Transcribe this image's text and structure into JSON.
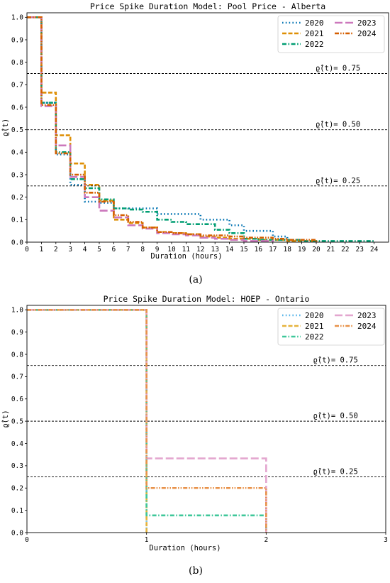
{
  "chart_data": [
    {
      "type": "line",
      "step": true,
      "panel_label": "(a)",
      "title": "Price Spike Duration Model: Pool Price - Alberta",
      "xlabel": "Duration (hours)",
      "ylabel": "ϱ̂(t)",
      "xlim": [
        0,
        25
      ],
      "ylim": [
        0,
        1.02
      ],
      "xticks": [
        0,
        1,
        2,
        3,
        4,
        5,
        6,
        7,
        8,
        9,
        10,
        11,
        12,
        13,
        14,
        15,
        16,
        17,
        18,
        19,
        20,
        21,
        22,
        23,
        24
      ],
      "yticks": [
        0.0,
        0.1,
        0.2,
        0.3,
        0.4,
        0.5,
        0.6,
        0.7,
        0.8,
        0.9,
        1.0
      ],
      "legend": {
        "position": "top-right",
        "columns": 2,
        "order": [
          "2020",
          "2021",
          "2022",
          "2023",
          "2024"
        ]
      },
      "hlines": [
        {
          "y": 0.75,
          "label": "ϱ̂(t)= 0.75",
          "label_x": 21.5
        },
        {
          "y": 0.5,
          "label": "ϱ̂(t)= 0.50",
          "label_x": 21.5
        },
        {
          "y": 0.25,
          "label": "ϱ̂(t)= 0.25",
          "label_x": 21.5
        }
      ],
      "series": [
        {
          "name": "2020",
          "color": "#0173b2",
          "dash": "dot",
          "x": [
            0,
            1,
            2,
            3,
            4,
            5,
            6,
            7,
            8,
            9,
            10,
            11,
            12,
            13,
            14,
            15,
            16,
            17,
            18
          ],
          "y": [
            1.0,
            0.62,
            0.39,
            0.255,
            0.18,
            0.175,
            0.15,
            0.15,
            0.15,
            0.125,
            0.125,
            0.125,
            0.1,
            0.1,
            0.075,
            0.05,
            0.05,
            0.025,
            0.0
          ]
        },
        {
          "name": "2021",
          "color": "#de8f05",
          "dash": "dash",
          "x": [
            0,
            1,
            2,
            3,
            4,
            5,
            6,
            7,
            8,
            9,
            10,
            11,
            12,
            13,
            14,
            15,
            16,
            17,
            18,
            19,
            20
          ],
          "y": [
            1.0,
            0.665,
            0.475,
            0.35,
            0.255,
            0.185,
            0.1,
            0.085,
            0.065,
            0.045,
            0.04,
            0.035,
            0.025,
            0.02,
            0.015,
            0.015,
            0.01,
            0.01,
            0.005,
            0.005,
            0.0
          ]
        },
        {
          "name": "2022",
          "color": "#029e73",
          "dash": "dashdot",
          "x": [
            0,
            1,
            2,
            3,
            4,
            5,
            6,
            7,
            8,
            9,
            10,
            11,
            12,
            13,
            14,
            15,
            16,
            17,
            18,
            19,
            20,
            21,
            22,
            23,
            24
          ],
          "y": [
            1.0,
            0.62,
            0.4,
            0.28,
            0.24,
            0.19,
            0.15,
            0.145,
            0.135,
            0.1,
            0.09,
            0.08,
            0.08,
            0.055,
            0.04,
            0.015,
            0.01,
            0.01,
            0.01,
            0.005,
            0.005,
            0.005,
            0.005,
            0.005,
            0.0
          ]
        },
        {
          "name": "2023",
          "color": "#cc78bc",
          "dash": "longdash",
          "x": [
            0,
            1,
            2,
            3,
            4,
            5,
            6,
            7,
            8,
            9,
            10,
            11,
            12,
            13,
            14,
            15,
            16,
            17
          ],
          "y": [
            1.0,
            0.605,
            0.43,
            0.29,
            0.2,
            0.14,
            0.11,
            0.075,
            0.06,
            0.04,
            0.035,
            0.03,
            0.02,
            0.015,
            0.01,
            0.005,
            0.005,
            0.0
          ]
        },
        {
          "name": "2024",
          "color": "#d55e00",
          "dash": "dashdotdot",
          "x": [
            0,
            1,
            2,
            3,
            4,
            5,
            6,
            7,
            8,
            9,
            10,
            11,
            12,
            13,
            14,
            15,
            16,
            17,
            18,
            19,
            20
          ],
          "y": [
            1.0,
            0.61,
            0.395,
            0.3,
            0.22,
            0.18,
            0.12,
            0.09,
            0.065,
            0.045,
            0.04,
            0.035,
            0.03,
            0.03,
            0.025,
            0.02,
            0.02,
            0.015,
            0.01,
            0.01,
            0.0
          ]
        }
      ]
    },
    {
      "type": "line",
      "step": true,
      "panel_label": "(b)",
      "title": "Price Spike Duration Model: HOEP - Ontario",
      "xlabel": "Duration (hours)",
      "ylabel": "ϱ̂(t)",
      "xlim": [
        0,
        3
      ],
      "ylim": [
        0,
        1.02
      ],
      "xticks": [
        0,
        1,
        2,
        3
      ],
      "yticks": [
        0.0,
        0.1,
        0.2,
        0.3,
        0.4,
        0.5,
        0.6,
        0.7,
        0.8,
        0.9,
        1.0
      ],
      "legend": {
        "position": "top-right",
        "columns": 2,
        "order": [
          "2020",
          "2021",
          "2022",
          "2023",
          "2024"
        ]
      },
      "hlines": [
        {
          "y": 0.75,
          "label": "ϱ̂(t)= 0.75",
          "label_x": 2.58
        },
        {
          "y": 0.5,
          "label": "ϱ̂(t)= 0.50",
          "label_x": 2.58
        },
        {
          "y": 0.25,
          "label": "ϱ̂(t)= 0.25",
          "label_x": 2.58
        }
      ],
      "series": [
        {
          "name": "2020",
          "color": "#56b4e9",
          "dash": "dot",
          "x": [
            0,
            1
          ],
          "y": [
            1.0,
            0.0
          ]
        },
        {
          "name": "2021",
          "color": "#e6b33c",
          "dash": "dash",
          "x": [
            0,
            1
          ],
          "y": [
            1.0,
            0.0
          ]
        },
        {
          "name": "2022",
          "color": "#3fc79a",
          "dash": "dashdot",
          "x": [
            0,
            1,
            2
          ],
          "y": [
            1.0,
            0.077,
            0.0
          ]
        },
        {
          "name": "2023",
          "color": "#e3a6cf",
          "dash": "longdash",
          "x": [
            0,
            1,
            2
          ],
          "y": [
            1.0,
            0.333,
            0.0
          ]
        },
        {
          "name": "2024",
          "color": "#e8924a",
          "dash": "dashdotdot",
          "x": [
            0,
            1,
            2
          ],
          "y": [
            1.0,
            0.2,
            0.0
          ]
        }
      ]
    }
  ]
}
